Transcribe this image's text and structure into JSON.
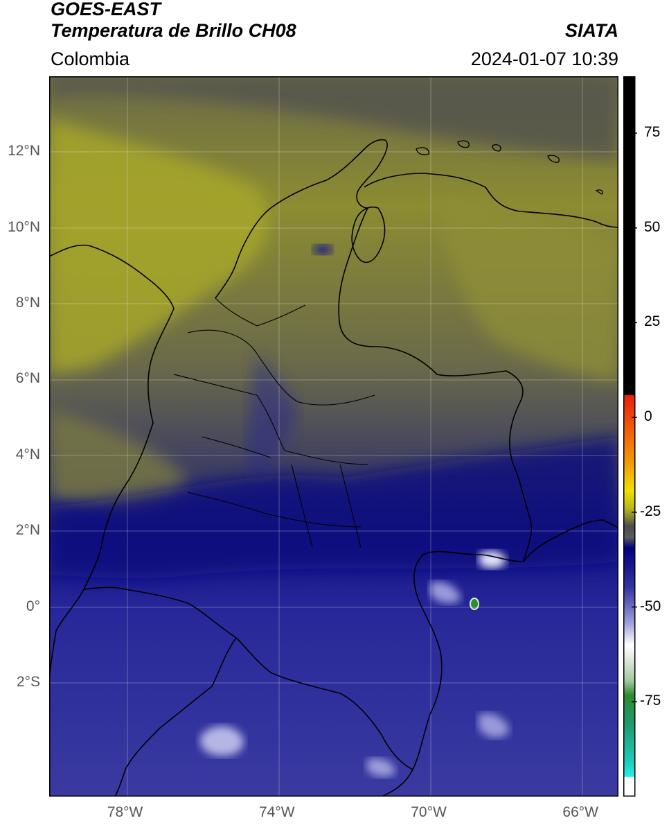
{
  "header": {
    "satellite": "GOES-EAST",
    "product": "Temperatura de Brillo CH08",
    "brand": "SIATA",
    "region": "Colombia",
    "timestamp": "2024-01-07 10:39"
  },
  "map": {
    "lon_range": [
      -80,
      -65
    ],
    "lat_range": [
      -5,
      14
    ],
    "lat_ticks": [
      {
        "value": 12,
        "label": "12°N"
      },
      {
        "value": 10,
        "label": "10°N"
      },
      {
        "value": 8,
        "label": "8°N"
      },
      {
        "value": 6,
        "label": "6°N"
      },
      {
        "value": 4,
        "label": "4°N"
      },
      {
        "value": 2,
        "label": "2°N"
      },
      {
        "value": 0,
        "label": "0°"
      },
      {
        "value": -2,
        "label": "2°S"
      }
    ],
    "lon_ticks": [
      {
        "value": -78,
        "label": "78°W"
      },
      {
        "value": -74,
        "label": "74°W"
      },
      {
        "value": -70,
        "label": "70°W"
      },
      {
        "value": -66,
        "label": "66°W"
      }
    ],
    "grid": true
  },
  "colorbar": {
    "range": [
      -100,
      90
    ],
    "ticks": [
      {
        "value": 75,
        "label": "75"
      },
      {
        "value": 50,
        "label": "50"
      },
      {
        "value": 25,
        "label": "25"
      },
      {
        "value": 0,
        "label": "0"
      },
      {
        "value": -25,
        "label": "-25"
      },
      {
        "value": -50,
        "label": "-50"
      },
      {
        "value": -75,
        "label": "-75"
      }
    ],
    "colors": {
      "warm": "#000000",
      "red": "#e8200a",
      "orange": "#f08a0a",
      "yellow": "#f0e000",
      "olive": "#a0a020",
      "gray": "#4a4a52",
      "navy": "#000080",
      "lavender": "#c8c8f0",
      "white": "#ffffff",
      "green": "#2e8b2e",
      "cyan": "#20e0d8"
    }
  }
}
